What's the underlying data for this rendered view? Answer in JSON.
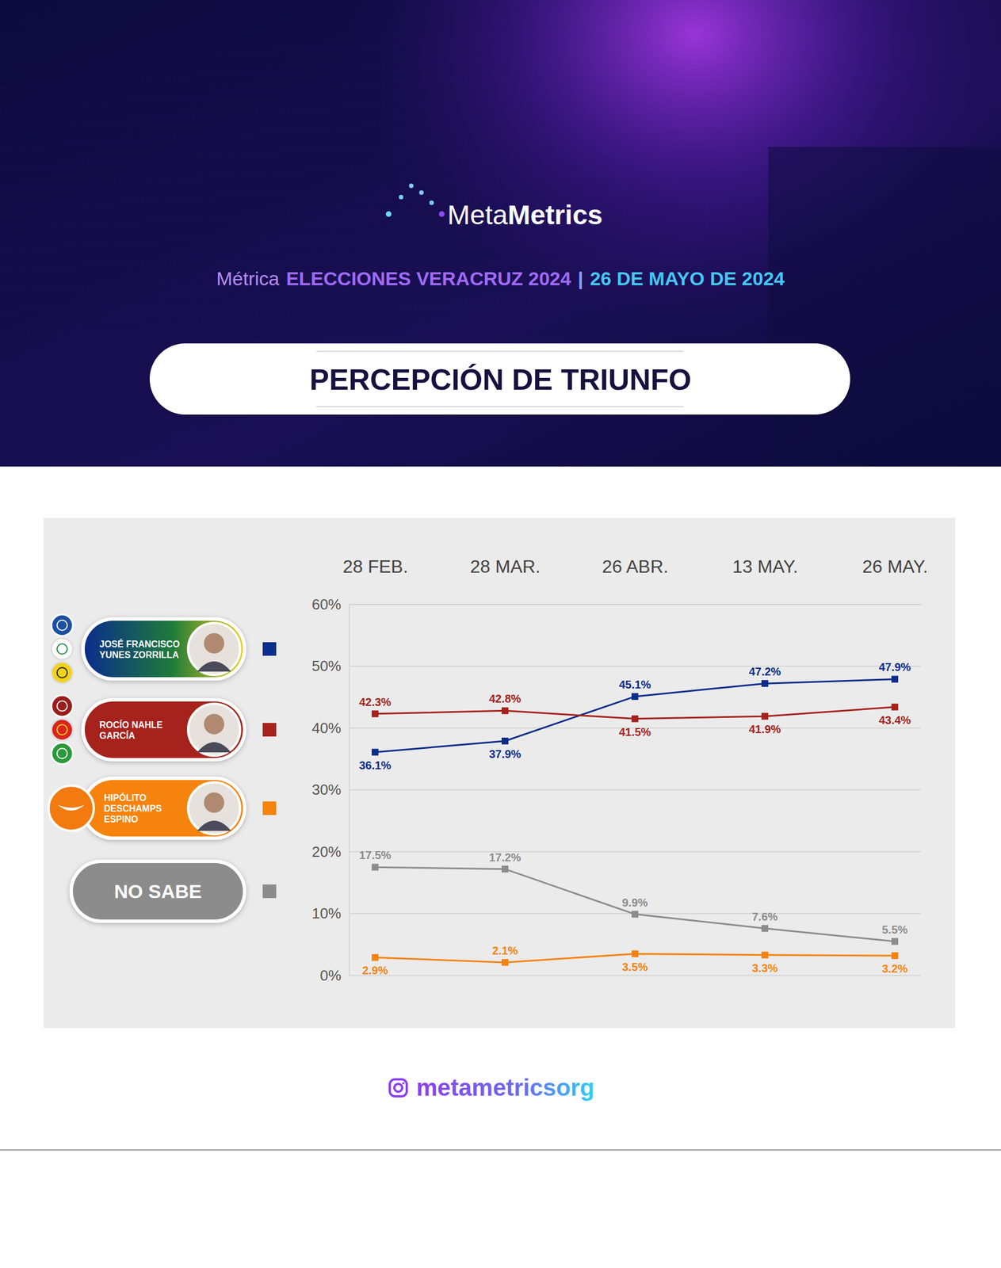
{
  "header": {
    "brand": [
      "Meta",
      "Metrics"
    ],
    "subtitle": [
      "Métrica",
      "ELECCIONES VERACRUZ 2024",
      "|",
      "26 DE MAYO DE 2024"
    ]
  },
  "chart_data": {
    "type": "line",
    "title": "PERCEPCIÓN DE TRIUNFO",
    "categories": [
      "28 FEB.",
      "28 MAR.",
      "26 ABR.",
      "13 MAY.",
      "26 MAY."
    ],
    "series": [
      {
        "name": "JOSÉ FRANCISCO YUNES ZORRILLA",
        "color": "#0b2d8c",
        "values": [
          36.1,
          37.9,
          45.1,
          47.2,
          47.9
        ],
        "value_labels": [
          "36.1%",
          "37.9%",
          "45.1%",
          "47.2%",
          "47.9%"
        ]
      },
      {
        "name": "ROCÍO NAHLE GARCÍA",
        "color": "#a6221c",
        "values": [
          42.3,
          42.8,
          41.5,
          41.9,
          43.4
        ],
        "value_labels": [
          "42.3%",
          "42.8%",
          "41.5%",
          "41.9%",
          "43.4%"
        ]
      },
      {
        "name": "HIPÓLITO DESCHAMPS ESPINO",
        "color": "#f7830f",
        "values": [
          2.9,
          2.1,
          3.5,
          3.3,
          3.2
        ],
        "value_labels": [
          "2.9%",
          "2.1%",
          "3.5%",
          "3.3%",
          "3.2%"
        ]
      },
      {
        "name": "NO SABE",
        "color": "#8c8c8c",
        "values": [
          17.5,
          17.2,
          9.9,
          7.6,
          5.5
        ],
        "value_labels": [
          "17.5%",
          "17.2%",
          "9.9%",
          "7.6%",
          "5.5%"
        ]
      }
    ],
    "ylim": [
      0,
      60
    ],
    "yticks": [
      {
        "value": 0,
        "label": "0%"
      },
      {
        "value": 10,
        "label": "10%"
      },
      {
        "value": 20,
        "label": "20%"
      },
      {
        "value": 30,
        "label": "30%"
      },
      {
        "value": 40,
        "label": "40%"
      },
      {
        "value": 50,
        "label": "50%"
      },
      {
        "value": 60,
        "label": "60%"
      }
    ],
    "grid": true,
    "legend": "left",
    "data_labels": true,
    "marker": "square"
  },
  "footer": {
    "handle": "metametricsorg"
  }
}
